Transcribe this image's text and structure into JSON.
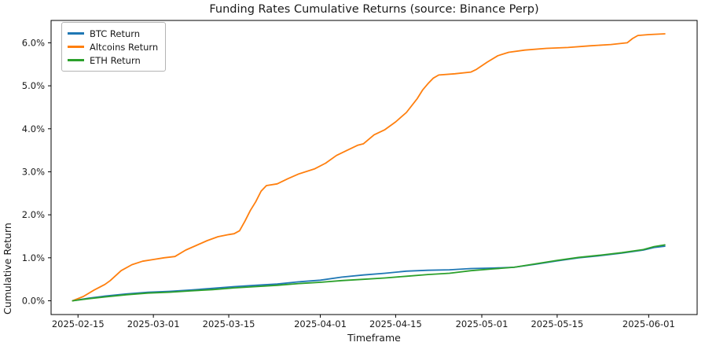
{
  "chart_data": {
    "type": "line",
    "title": "Funding Rates Cumulative Returns (source: Binance Perp)",
    "xlabel": "Timeframe",
    "ylabel": "Cumulative Return",
    "unit": "percent",
    "grid": false,
    "legend_position": "upper left",
    "x_domain": [
      "2025-02-10",
      "2025-06-10"
    ],
    "ylim": [
      -0.32,
      6.52
    ],
    "x_ticks": [
      "2025-02-15",
      "2025-03-01",
      "2025-03-15",
      "2025-04-01",
      "2025-04-15",
      "2025-05-01",
      "2025-05-15",
      "2025-06-01"
    ],
    "y_ticks": [
      {
        "value": 0,
        "label": "0.0%"
      },
      {
        "value": 1,
        "label": "1.0%"
      },
      {
        "value": 2,
        "label": "2.0%"
      },
      {
        "value": 3,
        "label": "3.0%"
      },
      {
        "value": 4,
        "label": "4.0%"
      },
      {
        "value": 5,
        "label": "5.0%"
      },
      {
        "value": 6,
        "label": "6.0%"
      }
    ],
    "series": [
      {
        "name": "BTC Return",
        "color": "#1f77b4",
        "points": [
          [
            "2025-02-14",
            0.0
          ],
          [
            "2025-02-17",
            0.06
          ],
          [
            "2025-02-20",
            0.11
          ],
          [
            "2025-02-24",
            0.16
          ],
          [
            "2025-02-28",
            0.2
          ],
          [
            "2025-03-04",
            0.22
          ],
          [
            "2025-03-08",
            0.25
          ],
          [
            "2025-03-12",
            0.29
          ],
          [
            "2025-03-16",
            0.33
          ],
          [
            "2025-03-20",
            0.36
          ],
          [
            "2025-03-24",
            0.39
          ],
          [
            "2025-03-28",
            0.44
          ],
          [
            "2025-04-01",
            0.48
          ],
          [
            "2025-04-05",
            0.55
          ],
          [
            "2025-04-09",
            0.6
          ],
          [
            "2025-04-13",
            0.64
          ],
          [
            "2025-04-17",
            0.69
          ],
          [
            "2025-04-21",
            0.71
          ],
          [
            "2025-04-25",
            0.72
          ],
          [
            "2025-04-29",
            0.75
          ],
          [
            "2025-05-03",
            0.76
          ],
          [
            "2025-05-07",
            0.78
          ],
          [
            "2025-05-11",
            0.85
          ],
          [
            "2025-05-15",
            0.93
          ],
          [
            "2025-05-19",
            1.0
          ],
          [
            "2025-05-23",
            1.05
          ],
          [
            "2025-05-27",
            1.11
          ],
          [
            "2025-05-31",
            1.18
          ],
          [
            "2025-06-02",
            1.24
          ],
          [
            "2025-06-04",
            1.27
          ]
        ]
      },
      {
        "name": "Altcoins Return",
        "color": "#ff7f0e",
        "points": [
          [
            "2025-02-14",
            0.0
          ],
          [
            "2025-02-16",
            0.1
          ],
          [
            "2025-02-18",
            0.25
          ],
          [
            "2025-02-20",
            0.38
          ],
          [
            "2025-02-21",
            0.47
          ],
          [
            "2025-02-23",
            0.7
          ],
          [
            "2025-02-25",
            0.84
          ],
          [
            "2025-02-27",
            0.92
          ],
          [
            "2025-03-01",
            0.96
          ],
          [
            "2025-03-03",
            1.0
          ],
          [
            "2025-03-05",
            1.03
          ],
          [
            "2025-03-07",
            1.18
          ],
          [
            "2025-03-09",
            1.29
          ],
          [
            "2025-03-11",
            1.4
          ],
          [
            "2025-03-13",
            1.49
          ],
          [
            "2025-03-15",
            1.54
          ],
          [
            "2025-03-16",
            1.56
          ],
          [
            "2025-03-17",
            1.63
          ],
          [
            "2025-03-18",
            1.85
          ],
          [
            "2025-03-19",
            2.1
          ],
          [
            "2025-03-20",
            2.3
          ],
          [
            "2025-03-21",
            2.55
          ],
          [
            "2025-03-22",
            2.68
          ],
          [
            "2025-03-24",
            2.72
          ],
          [
            "2025-03-26",
            2.84
          ],
          [
            "2025-03-28",
            2.95
          ],
          [
            "2025-03-31",
            3.07
          ],
          [
            "2025-04-02",
            3.2
          ],
          [
            "2025-04-04",
            3.38
          ],
          [
            "2025-04-06",
            3.5
          ],
          [
            "2025-04-08",
            3.62
          ],
          [
            "2025-04-09",
            3.65
          ],
          [
            "2025-04-11",
            3.86
          ],
          [
            "2025-04-13",
            3.98
          ],
          [
            "2025-04-15",
            4.16
          ],
          [
            "2025-04-17",
            4.38
          ],
          [
            "2025-04-19",
            4.7
          ],
          [
            "2025-04-20",
            4.9
          ],
          [
            "2025-04-21",
            5.05
          ],
          [
            "2025-04-22",
            5.18
          ],
          [
            "2025-04-23",
            5.25
          ],
          [
            "2025-04-26",
            5.28
          ],
          [
            "2025-04-29",
            5.32
          ],
          [
            "2025-04-30",
            5.38
          ],
          [
            "2025-05-02",
            5.55
          ],
          [
            "2025-05-04",
            5.7
          ],
          [
            "2025-05-06",
            5.78
          ],
          [
            "2025-05-09",
            5.83
          ],
          [
            "2025-05-13",
            5.87
          ],
          [
            "2025-05-17",
            5.89
          ],
          [
            "2025-05-21",
            5.93
          ],
          [
            "2025-05-25",
            5.96
          ],
          [
            "2025-05-28",
            6.0
          ],
          [
            "2025-05-29",
            6.1
          ],
          [
            "2025-05-30",
            6.17
          ],
          [
            "2025-06-01",
            6.19
          ],
          [
            "2025-06-04",
            6.21
          ]
        ]
      },
      {
        "name": "ETH Return",
        "color": "#2ca02c",
        "points": [
          [
            "2025-02-14",
            0.0
          ],
          [
            "2025-02-17",
            0.05
          ],
          [
            "2025-02-20",
            0.09
          ],
          [
            "2025-02-24",
            0.14
          ],
          [
            "2025-02-28",
            0.18
          ],
          [
            "2025-03-04",
            0.2
          ],
          [
            "2025-03-08",
            0.23
          ],
          [
            "2025-03-12",
            0.26
          ],
          [
            "2025-03-16",
            0.3
          ],
          [
            "2025-03-20",
            0.33
          ],
          [
            "2025-03-24",
            0.36
          ],
          [
            "2025-03-28",
            0.4
          ],
          [
            "2025-04-01",
            0.43
          ],
          [
            "2025-04-05",
            0.47
          ],
          [
            "2025-04-09",
            0.5
          ],
          [
            "2025-04-13",
            0.53
          ],
          [
            "2025-04-17",
            0.57
          ],
          [
            "2025-04-21",
            0.61
          ],
          [
            "2025-04-25",
            0.64
          ],
          [
            "2025-04-29",
            0.7
          ],
          [
            "2025-05-03",
            0.74
          ],
          [
            "2025-05-07",
            0.78
          ],
          [
            "2025-05-11",
            0.86
          ],
          [
            "2025-05-15",
            0.94
          ],
          [
            "2025-05-19",
            1.01
          ],
          [
            "2025-05-23",
            1.06
          ],
          [
            "2025-05-27",
            1.12
          ],
          [
            "2025-05-31",
            1.19
          ],
          [
            "2025-06-02",
            1.26
          ],
          [
            "2025-06-04",
            1.3
          ]
        ]
      }
    ]
  }
}
